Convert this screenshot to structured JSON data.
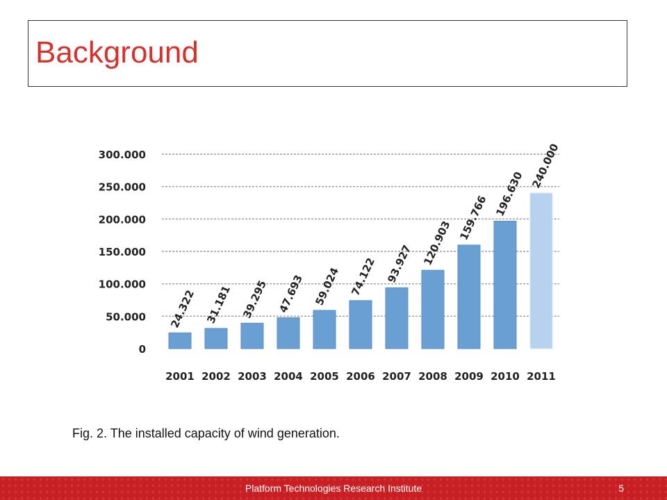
{
  "slide": {
    "title": "Background",
    "caption": "Fig. 2. The installed capacity of wind generation.",
    "footer_text": "Platform Technologies Research Institute",
    "page_number": "5"
  },
  "colors": {
    "title": "#d9302c",
    "bar": "#6a9fd4",
    "bar_projected": "#b6d2ef",
    "footer": "#c81f24",
    "grid": "#9a9a9a",
    "axis_text": "#222222"
  },
  "chart_data": {
    "type": "bar",
    "categories": [
      "2001",
      "2002",
      "2003",
      "2004",
      "2005",
      "2006",
      "2007",
      "2008",
      "2009",
      "2010",
      "2011"
    ],
    "values": [
      24322,
      31181,
      39295,
      47693,
      59024,
      74122,
      93927,
      120903,
      159766,
      196630,
      240000
    ],
    "data_labels": [
      "24.322",
      "31.181",
      "39.295",
      "47.693",
      "59.024",
      "74.122",
      "93.927",
      "120.903",
      "159.766",
      "196.630",
      "240.000"
    ],
    "ylim": [
      0,
      300000
    ],
    "yticks": [
      0,
      50000,
      100000,
      150000,
      200000,
      250000,
      300000
    ],
    "ytick_labels": [
      "0",
      "50.000",
      "100.000",
      "150.000",
      "200.000",
      "250.000",
      "300.000"
    ],
    "grid": true,
    "legend": "none",
    "title": "",
    "xlabel": "",
    "ylabel": ""
  }
}
